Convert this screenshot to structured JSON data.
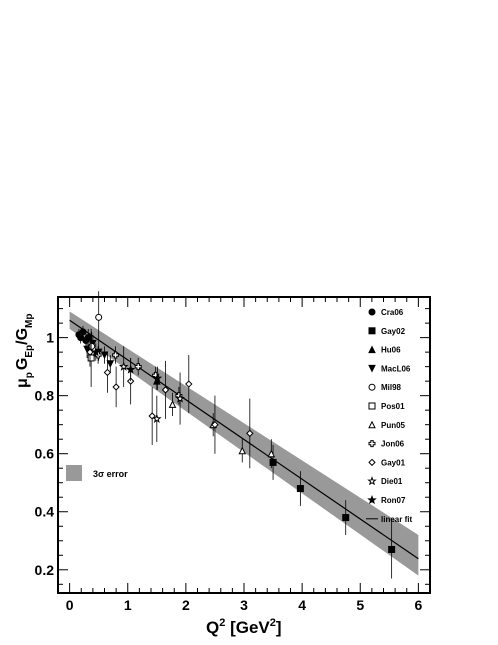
{
  "chart_data": {
    "type": "scatter",
    "title": "",
    "xlabel": {
      "main": "Q",
      "sup": "2",
      "unit_pre": " [GeV",
      "unit_sup": "2",
      "unit_post": "]"
    },
    "ylabel": {
      "mu": "μ",
      "p1": "p",
      "G1": "G",
      "Ep": "Ep",
      "slash": "/G",
      "Mp": "Mp"
    },
    "xlim": [
      -0.2,
      6.2
    ],
    "ylim": [
      0.12,
      1.14
    ],
    "xticks": [
      0,
      1,
      2,
      3,
      4,
      5,
      6
    ],
    "xtick_labels": [
      "0",
      "1",
      "2",
      "3",
      "4",
      "5",
      "6"
    ],
    "yticks": [
      0.2,
      0.4,
      0.6,
      0.8,
      1.0
    ],
    "ytick_labels": [
      "0.2",
      "0.4",
      "0.6",
      "0.8",
      "1"
    ],
    "grid": false,
    "legend_position": "right",
    "band_legend": {
      "label": "3σ error",
      "color": "#999999"
    },
    "fit": {
      "name": "linear fit",
      "intercept": 1.06,
      "slope": -0.137
    },
    "band": {
      "x": [
        0,
        6
      ],
      "lower": [
        1.03,
        0.18
      ],
      "upper": [
        1.09,
        0.32
      ]
    },
    "series": [
      {
        "name": "Cra06",
        "marker": "circle-filled",
        "points": [
          [
            0.16,
            1.01,
            0.02
          ],
          [
            0.19,
            1.0,
            0.02
          ],
          [
            0.23,
            1.02,
            0.02
          ],
          [
            0.28,
            0.99,
            0.03
          ],
          [
            0.32,
            1.0,
            0.03
          ]
        ]
      },
      {
        "name": "Gay02",
        "marker": "square-filled",
        "points": [
          [
            3.5,
            0.57,
            0.06
          ],
          [
            3.97,
            0.48,
            0.06
          ],
          [
            4.75,
            0.38,
            0.06
          ],
          [
            5.54,
            0.27,
            0.1
          ]
        ]
      },
      {
        "name": "Hu06",
        "marker": "triangle-up-filled",
        "points": [
          [
            1.5,
            0.85,
            0.03
          ]
        ]
      },
      {
        "name": "MacL06",
        "marker": "triangle-down-filled",
        "points": [
          [
            0.3,
            0.96,
            0.03
          ],
          [
            0.4,
            0.98,
            0.03
          ],
          [
            0.5,
            0.95,
            0.03
          ],
          [
            0.6,
            0.94,
            0.03
          ],
          [
            0.7,
            0.91,
            0.03
          ]
        ]
      },
      {
        "name": "Mil98",
        "marker": "circle-open",
        "points": [
          [
            0.38,
            0.97,
            0.05
          ],
          [
            0.5,
            1.07,
            0.09
          ]
        ]
      },
      {
        "name": "Pos01",
        "marker": "square-open",
        "points": [
          [
            0.37,
            0.93,
            0.1
          ]
        ]
      },
      {
        "name": "Pun05",
        "marker": "triangle-up-open",
        "points": [
          [
            1.77,
            0.77,
            0.04
          ],
          [
            2.47,
            0.7,
            0.04
          ],
          [
            2.97,
            0.61,
            0.04
          ],
          [
            3.47,
            0.6,
            0.05
          ]
        ]
      },
      {
        "name": "Jon06",
        "marker": "cross-open",
        "points": [
          [
            0.49,
            0.94,
            0.03
          ],
          [
            0.79,
            0.94,
            0.03
          ],
          [
            1.18,
            0.9,
            0.03
          ],
          [
            1.48,
            0.87,
            0.03
          ],
          [
            1.88,
            0.8,
            0.03
          ]
        ]
      },
      {
        "name": "Gay01",
        "marker": "diamond-open",
        "points": [
          [
            0.35,
            0.95,
            0.05
          ],
          [
            0.65,
            0.88,
            0.07
          ],
          [
            0.8,
            0.83,
            0.07
          ],
          [
            1.05,
            0.85,
            0.08
          ],
          [
            1.42,
            0.73,
            0.1
          ],
          [
            1.65,
            0.82,
            0.1
          ],
          [
            2.05,
            0.84,
            0.1
          ],
          [
            2.5,
            0.7,
            0.1
          ],
          [
            3.1,
            0.67,
            0.12
          ]
        ]
      },
      {
        "name": "Die01",
        "marker": "star-open",
        "points": [
          [
            0.93,
            0.9,
            0.07
          ],
          [
            1.5,
            0.72,
            0.08
          ],
          [
            1.9,
            0.79,
            0.09
          ]
        ]
      },
      {
        "name": "Ron07",
        "marker": "star-filled",
        "points": [
          [
            0.45,
            0.95,
            0.03
          ],
          [
            1.05,
            0.89,
            0.04
          ],
          [
            1.51,
            0.86,
            0.04
          ]
        ]
      }
    ],
    "legend_entries": [
      "Cra06",
      "Gay02",
      "Hu06",
      "MacL06",
      "Mil98",
      "Pos01",
      "Pun05",
      "Jon06",
      "Gay01",
      "Die01",
      "Ron07",
      "linear fit"
    ]
  }
}
